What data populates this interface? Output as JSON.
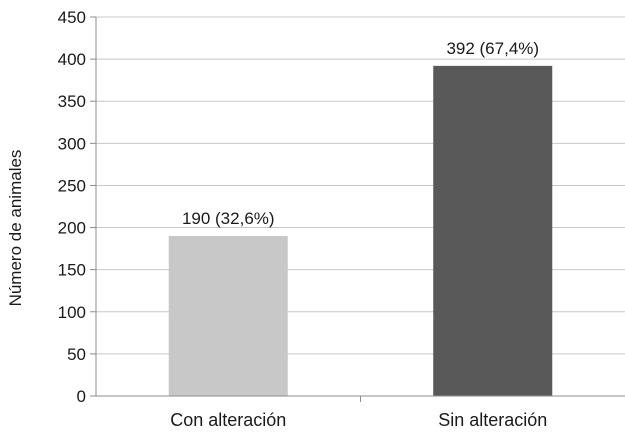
{
  "chart_data": {
    "type": "bar",
    "categories": [
      "Con alteración",
      "Sin alteración"
    ],
    "values": [
      190,
      392
    ],
    "data_labels": [
      "190 (32,6%)",
      "392 (67,4%)"
    ],
    "ylabel": "Número de animales",
    "xlabel": "",
    "ylim": [
      0,
      450
    ],
    "yticks": [
      0,
      50,
      100,
      150,
      200,
      250,
      300,
      350,
      400,
      450
    ],
    "grid": true,
    "legend": "none",
    "colors": [
      "#c8c8c8",
      "#595959"
    ]
  }
}
